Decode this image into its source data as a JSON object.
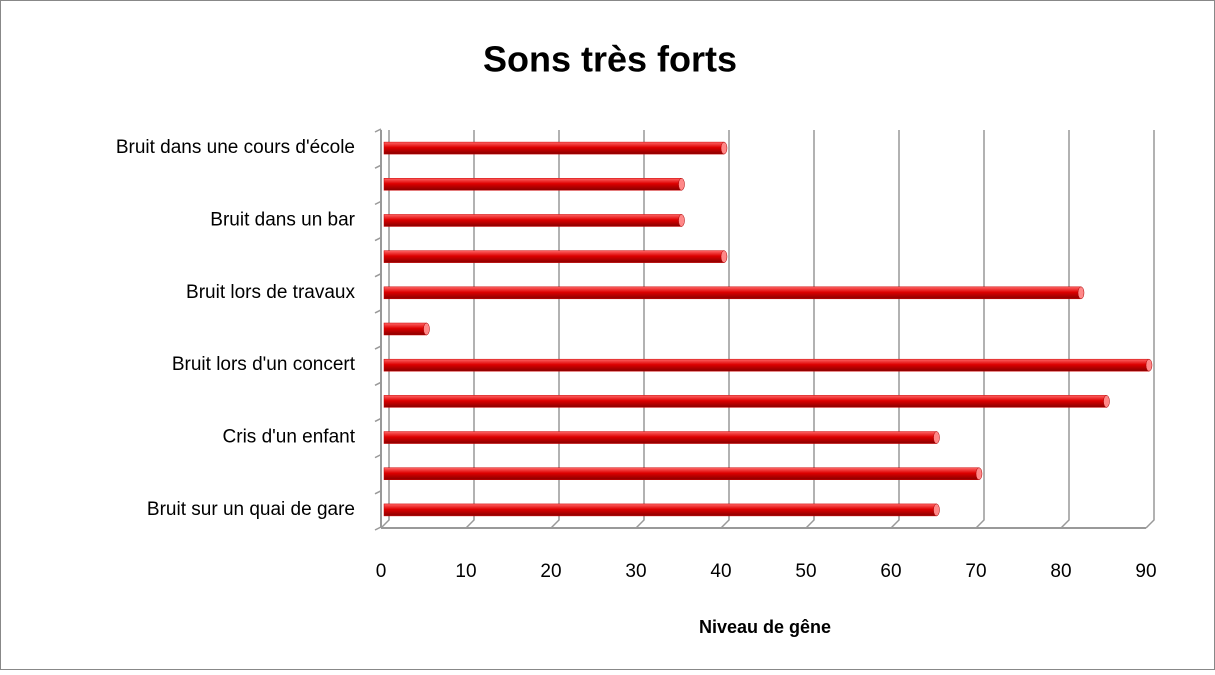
{
  "chart_data": {
    "type": "barh",
    "title": "Sons très forts",
    "x_label": "Niveau de gêne",
    "categories": [
      "Bruit dans une cours d'école",
      null,
      "Bruit dans un bar",
      null,
      "Bruit lors de travaux",
      null,
      "Bruit lors d'un concert",
      null,
      "Cris d'un enfant",
      null,
      "Bruit sur un quai de gare"
    ],
    "values": [
      40,
      35,
      35,
      40,
      82,
      5,
      90,
      85,
      65,
      70,
      65
    ],
    "color": "#cc0000",
    "xlim": [
      0,
      90
    ],
    "xticks": [
      0,
      10,
      20,
      30,
      40,
      50,
      60,
      70,
      80,
      90
    ],
    "grid": true
  }
}
